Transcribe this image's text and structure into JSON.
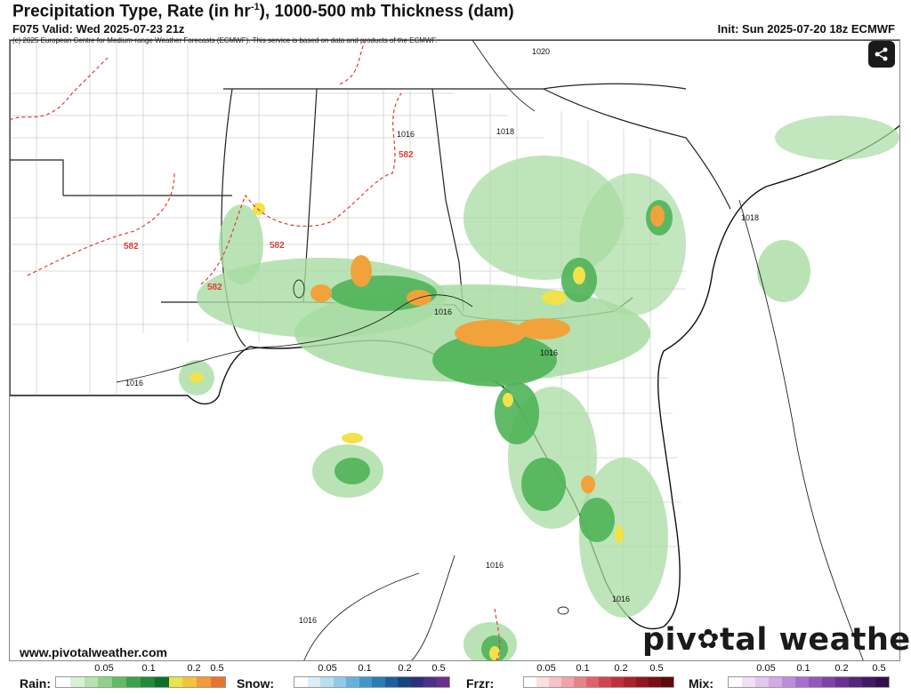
{
  "header": {
    "title": "Precipitation Type, Rate (in hr",
    "title_sup": "-1",
    "title_rest": "), 1000-500 mb Thickness (dam)",
    "valid": "F075 Valid: Wed 2025-07-23 21z",
    "init": "Init: Sun 2025-07-20 18z ECMWF",
    "copyright": "(c) 2025 European Centre for Medium-range Weather Forecasts (ECMWF). This service is based on data and products of the ECMWF."
  },
  "share_button": {
    "icon": "share-icon"
  },
  "map": {
    "region": "Southeastern United States and Gulf of Mexico",
    "pressure_labels": [
      "1020",
      "1018",
      "1016",
      "1016",
      "1016",
      "1018",
      "1016",
      "1016",
      "1016",
      "1016"
    ],
    "thickness_labels": [
      "582",
      "582",
      "582",
      "582"
    ],
    "colors": {
      "light_rain": "#a8dca2",
      "moderate_rain": "#4fb358",
      "heavy_rain": "#1d7a34",
      "yellow": "#f2e24a",
      "orange": "#f2a23a",
      "thickness_line": "#e23b3b",
      "isobar": "#222222"
    }
  },
  "footer": {
    "site": "www.pivotalweather.com",
    "brand_left": "piv",
    "brand_right": "tal weather",
    "brand_gear": "✿"
  },
  "legend": {
    "rain": {
      "label": "Rain:",
      "ticks": [
        "0.05",
        "0.1",
        "0.2",
        "0.5"
      ],
      "colors": [
        "#ffffff",
        "#d9f0d3",
        "#b7e2b0",
        "#8fd18a",
        "#62bb64",
        "#3ba24b",
        "#1f8a39",
        "#0f6e2a",
        "#e8e54a",
        "#f6c23e",
        "#f39b36",
        "#e8742f"
      ]
    },
    "snow": {
      "label": "Snow:",
      "ticks": [
        "0.05",
        "0.1",
        "0.2",
        "0.5"
      ],
      "colors": [
        "#ffffff",
        "#dbeef8",
        "#b9def2",
        "#92cbe9",
        "#67b2dc",
        "#3f97cc",
        "#2a7bb7",
        "#1c5f9d",
        "#17467e",
        "#2d2f7a",
        "#4b2f8a",
        "#6a2f8c"
      ]
    },
    "frzr": {
      "label": "Frzr:",
      "ticks": [
        "0.05",
        "0.1",
        "0.2",
        "0.5"
      ],
      "colors": [
        "#ffffff",
        "#fbe0e2",
        "#f6c4c8",
        "#f0a3a9",
        "#e98188",
        "#e0616a",
        "#d4444f",
        "#c32f39",
        "#ad2029",
        "#93151d",
        "#7a0e15",
        "#5f080e"
      ]
    },
    "mix": {
      "label": "Mix:",
      "ticks": [
        "0.05",
        "0.1",
        "0.2",
        "0.5"
      ],
      "colors": [
        "#ffffff",
        "#f1e0f6",
        "#e3c7ef",
        "#d2aae6",
        "#bf8cdb",
        "#aa6ecf",
        "#9455bd",
        "#7e41a8",
        "#6a3192",
        "#55247b",
        "#421964",
        "#30104e"
      ]
    }
  }
}
